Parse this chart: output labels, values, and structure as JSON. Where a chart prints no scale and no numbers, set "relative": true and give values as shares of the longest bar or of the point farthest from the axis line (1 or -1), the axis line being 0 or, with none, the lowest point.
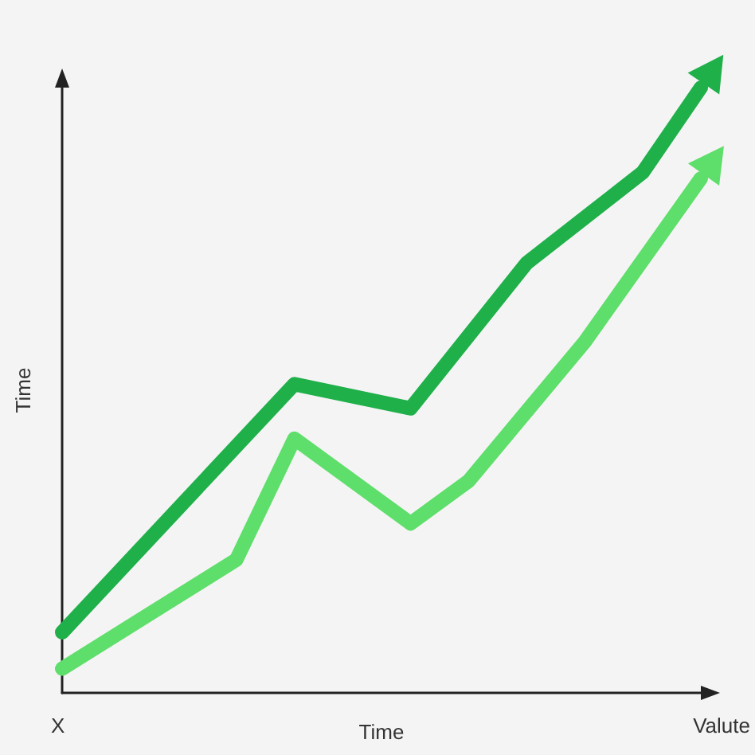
{
  "chart_data": {
    "type": "line",
    "relative": true,
    "xlabel": "Time",
    "ylabel": "Time",
    "annotations": [
      "X",
      "Valute"
    ],
    "categories": [
      null,
      null,
      null,
      null,
      null,
      null,
      null,
      null,
      null,
      null,
      null,
      null
    ],
    "series": [
      {
        "color": "#1fb04a",
        "values": [
          0.1,
          null,
          null,
          null,
          0.51,
          null,
          0.47,
          null,
          0.71,
          null,
          0.86,
          1.0
        ]
      },
      {
        "color": "#5ede6a",
        "values": [
          0.04,
          null,
          null,
          0.22,
          0.42,
          null,
          0.28,
          0.35,
          null,
          0.58,
          null,
          0.85
        ]
      }
    ]
  }
}
